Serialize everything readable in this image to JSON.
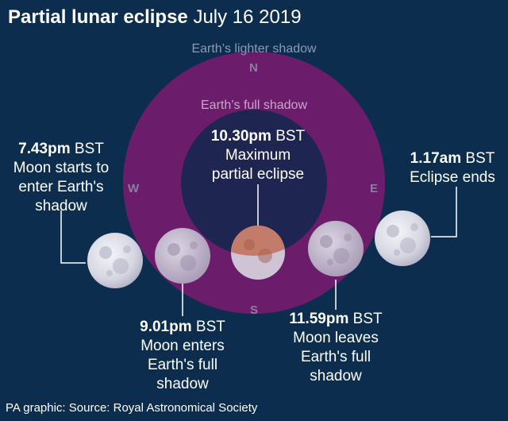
{
  "title": {
    "bold": "Partial lunar eclipse",
    "regular": "July 16 2019"
  },
  "shadows": {
    "lighter": "Earth’s lighter shadow",
    "full": "Earth’s full shadow"
  },
  "compass": {
    "n": "N",
    "e": "E",
    "s": "S",
    "w": "W"
  },
  "events": [
    {
      "time": "7.43pm",
      "zone": "BST",
      "line1": "Moon starts to",
      "line2": "enter Earth's",
      "line3": "shadow"
    },
    {
      "time": "9.01pm",
      "zone": "BST",
      "line1": "Moon enters",
      "line2": "Earth's full",
      "line3": "shadow"
    },
    {
      "time": "10.30pm",
      "zone": "BST",
      "line1": "Maximum",
      "line2": "partial eclipse"
    },
    {
      "time": "11.59pm",
      "zone": "BST",
      "line1": "Moon leaves",
      "line2": "Earth's full",
      "line3": "shadow"
    },
    {
      "time": "1.17am",
      "zone": "BST",
      "line1": "Eclipse ends"
    }
  ],
  "footer": "PA graphic: Source: Royal Astronomical Society",
  "colors": {
    "background": "#0d2d4f",
    "full_shadow_ring": "#6b1d6b",
    "umbra_core": "#1e2550",
    "moon": "#d8d8e4",
    "eclipsed_moon": "#c47c6a",
    "connector": "#ffffff"
  }
}
